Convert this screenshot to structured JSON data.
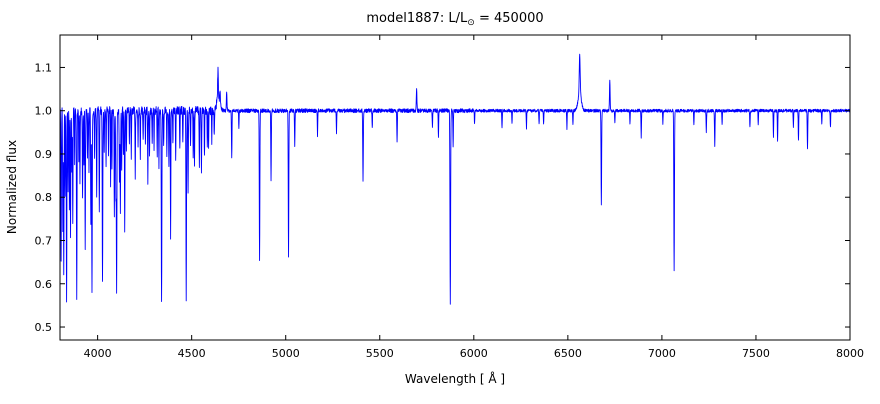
{
  "title": {
    "prefix": "model1887: L/L",
    "sun": "⊙",
    "suffix": " = 450000"
  },
  "chart_data": {
    "type": "line",
    "title": "model1887: L/L⊙ = 450000",
    "xlabel": "Wavelength [ Å ]",
    "ylabel": "Normalized flux",
    "xlim": [
      3800,
      8000
    ],
    "ylim": [
      0.47,
      1.175
    ],
    "xticks": [
      4000,
      4500,
      5000,
      5500,
      6000,
      6500,
      7000,
      7500,
      8000
    ],
    "xtick_labels": [
      "4000",
      "4500",
      "5000",
      "5500",
      "6000",
      "6500",
      "7000",
      "7500",
      "8000"
    ],
    "yticks": [
      0.5,
      0.6,
      0.7,
      0.8,
      0.9,
      1.0,
      1.1
    ],
    "ytick_labels": [
      "0.5",
      "0.6",
      "0.7",
      "0.8",
      "0.9",
      "1.0",
      "1.1"
    ],
    "line_color": "#0000ff",
    "background_color": "#ffffff",
    "frame_color": "#000000",
    "grid": false,
    "legend": null,
    "continuum": 1.0,
    "sample_step_A": 1,
    "noise": {
      "regions": [
        [
          4650,
          0.01
        ],
        [
          6000,
          0.0045
        ],
        [
          8000,
          0.0035
        ]
      ]
    },
    "features_format": [
      "wavelength_A",
      "flux_extremum",
      "sigma_A"
    ],
    "features": [
      [
        3806,
        0.66,
        1.4
      ],
      [
        3815,
        0.72,
        1.3
      ],
      [
        3820,
        0.62,
        1.4
      ],
      [
        3827,
        0.8,
        1.2
      ],
      [
        3835,
        0.55,
        1.5
      ],
      [
        3843,
        0.82,
        1.2
      ],
      [
        3850,
        0.78,
        1.2
      ],
      [
        3856,
        0.71,
        1.3
      ],
      [
        3863,
        0.85,
        1.2
      ],
      [
        3868,
        0.74,
        1.3
      ],
      [
        3878,
        0.88,
        1.2
      ],
      [
        3889,
        0.57,
        1.5
      ],
      [
        3900,
        0.89,
        1.2
      ],
      [
        3906,
        0.84,
        1.2
      ],
      [
        3920,
        0.79,
        1.3
      ],
      [
        3927,
        0.87,
        1.2
      ],
      [
        3934,
        0.68,
        1.4
      ],
      [
        3946,
        0.9,
        1.2
      ],
      [
        3954,
        0.86,
        1.2
      ],
      [
        3964,
        0.73,
        1.3
      ],
      [
        3970,
        0.57,
        1.5
      ],
      [
        3984,
        0.89,
        1.2
      ],
      [
        3995,
        0.81,
        1.3
      ],
      [
        4009,
        0.76,
        1.3
      ],
      [
        4026,
        0.6,
        1.5
      ],
      [
        4035,
        0.91,
        1.2
      ],
      [
        4045,
        0.87,
        1.2
      ],
      [
        4058,
        0.9,
        1.2
      ],
      [
        4069,
        0.83,
        1.2
      ],
      [
        4076,
        0.86,
        1.2
      ],
      [
        4089,
        0.75,
        1.3
      ],
      [
        4097,
        0.81,
        1.3
      ],
      [
        4101,
        0.57,
        1.5
      ],
      [
        4116,
        0.83,
        1.3
      ],
      [
        4121,
        0.77,
        1.3
      ],
      [
        4128,
        0.87,
        1.2
      ],
      [
        4137,
        0.89,
        1.2
      ],
      [
        4144,
        0.71,
        1.3
      ],
      [
        4153,
        0.9,
        1.2
      ],
      [
        4169,
        0.92,
        1.2
      ],
      [
        4179,
        0.89,
        1.2
      ],
      [
        4200,
        0.85,
        1.3
      ],
      [
        4215,
        0.92,
        1.2
      ],
      [
        4227,
        0.89,
        1.2
      ],
      [
        4242,
        0.93,
        1.2
      ],
      [
        4254,
        0.92,
        1.2
      ],
      [
        4267,
        0.84,
        1.3
      ],
      [
        4276,
        0.9,
        1.2
      ],
      [
        4290,
        0.93,
        1.2
      ],
      [
        4300,
        0.91,
        1.2
      ],
      [
        4317,
        0.89,
        1.2
      ],
      [
        4326,
        0.87,
        1.2
      ],
      [
        4340,
        0.55,
        1.6
      ],
      [
        4351,
        0.92,
        1.2
      ],
      [
        4368,
        0.89,
        1.2
      ],
      [
        4379,
        0.87,
        1.2
      ],
      [
        4388,
        0.7,
        1.3
      ],
      [
        4400,
        0.92,
        1.2
      ],
      [
        4415,
        0.89,
        1.2
      ],
      [
        4437,
        0.91,
        1.2
      ],
      [
        4453,
        0.93,
        1.2
      ],
      [
        4471,
        0.56,
        1.5
      ],
      [
        4481,
        0.81,
        1.3
      ],
      [
        4494,
        0.91,
        1.2
      ],
      [
        4508,
        0.89,
        1.2
      ],
      [
        4515,
        0.87,
        1.2
      ],
      [
        4541,
        0.87,
        1.3
      ],
      [
        4552,
        0.85,
        1.3
      ],
      [
        4568,
        0.89,
        1.2
      ],
      [
        4583,
        0.91,
        1.2
      ],
      [
        4590,
        0.92,
        1.2
      ],
      [
        4607,
        0.93,
        1.2
      ],
      [
        4620,
        0.94,
        1.2
      ],
      [
        4642,
        1.03,
        9.0
      ],
      [
        4640,
        1.07,
        1.8
      ],
      [
        4651,
        1.03,
        1.6
      ],
      [
        4686,
        1.04,
        1.8
      ],
      [
        4713,
        0.89,
        1.4
      ],
      [
        4751,
        0.96,
        1.2
      ],
      [
        4861,
        0.65,
        1.5
      ],
      [
        4922,
        0.84,
        1.4
      ],
      [
        5015,
        0.66,
        1.5
      ],
      [
        5048,
        0.92,
        1.3
      ],
      [
        5169,
        0.94,
        1.2
      ],
      [
        5270,
        0.95,
        1.2
      ],
      [
        5411,
        0.84,
        1.5
      ],
      [
        5460,
        0.96,
        1.2
      ],
      [
        5592,
        0.93,
        1.4
      ],
      [
        5696,
        1.05,
        1.6
      ],
      [
        5780,
        0.96,
        1.3
      ],
      [
        5812,
        0.94,
        1.3
      ],
      [
        5875,
        0.55,
        1.7
      ],
      [
        5890,
        0.92,
        1.3
      ],
      [
        6004,
        0.97,
        1.2
      ],
      [
        6150,
        0.96,
        1.3
      ],
      [
        6203,
        0.97,
        1.2
      ],
      [
        6280,
        0.96,
        1.2
      ],
      [
        6347,
        0.97,
        1.2
      ],
      [
        6371,
        0.97,
        1.2
      ],
      [
        6495,
        0.96,
        1.2
      ],
      [
        6527,
        0.97,
        1.2
      ],
      [
        6563,
        1.04,
        9.0
      ],
      [
        6563,
        1.09,
        2.4
      ],
      [
        6678,
        0.78,
        1.5
      ],
      [
        6723,
        1.07,
        1.7
      ],
      [
        6750,
        0.97,
        1.2
      ],
      [
        6830,
        0.97,
        1.2
      ],
      [
        6890,
        0.94,
        1.3
      ],
      [
        7005,
        0.97,
        1.2
      ],
      [
        7065,
        0.63,
        1.6
      ],
      [
        7170,
        0.97,
        1.2
      ],
      [
        7236,
        0.95,
        1.3
      ],
      [
        7281,
        0.92,
        1.4
      ],
      [
        7320,
        0.97,
        1.2
      ],
      [
        7468,
        0.96,
        1.2
      ],
      [
        7512,
        0.97,
        1.2
      ],
      [
        7593,
        0.94,
        1.3
      ],
      [
        7615,
        0.93,
        1.3
      ],
      [
        7699,
        0.96,
        1.2
      ],
      [
        7726,
        0.93,
        1.3
      ],
      [
        7774,
        0.91,
        1.4
      ],
      [
        7850,
        0.97,
        1.2
      ],
      [
        7896,
        0.96,
        1.2
      ]
    ]
  }
}
